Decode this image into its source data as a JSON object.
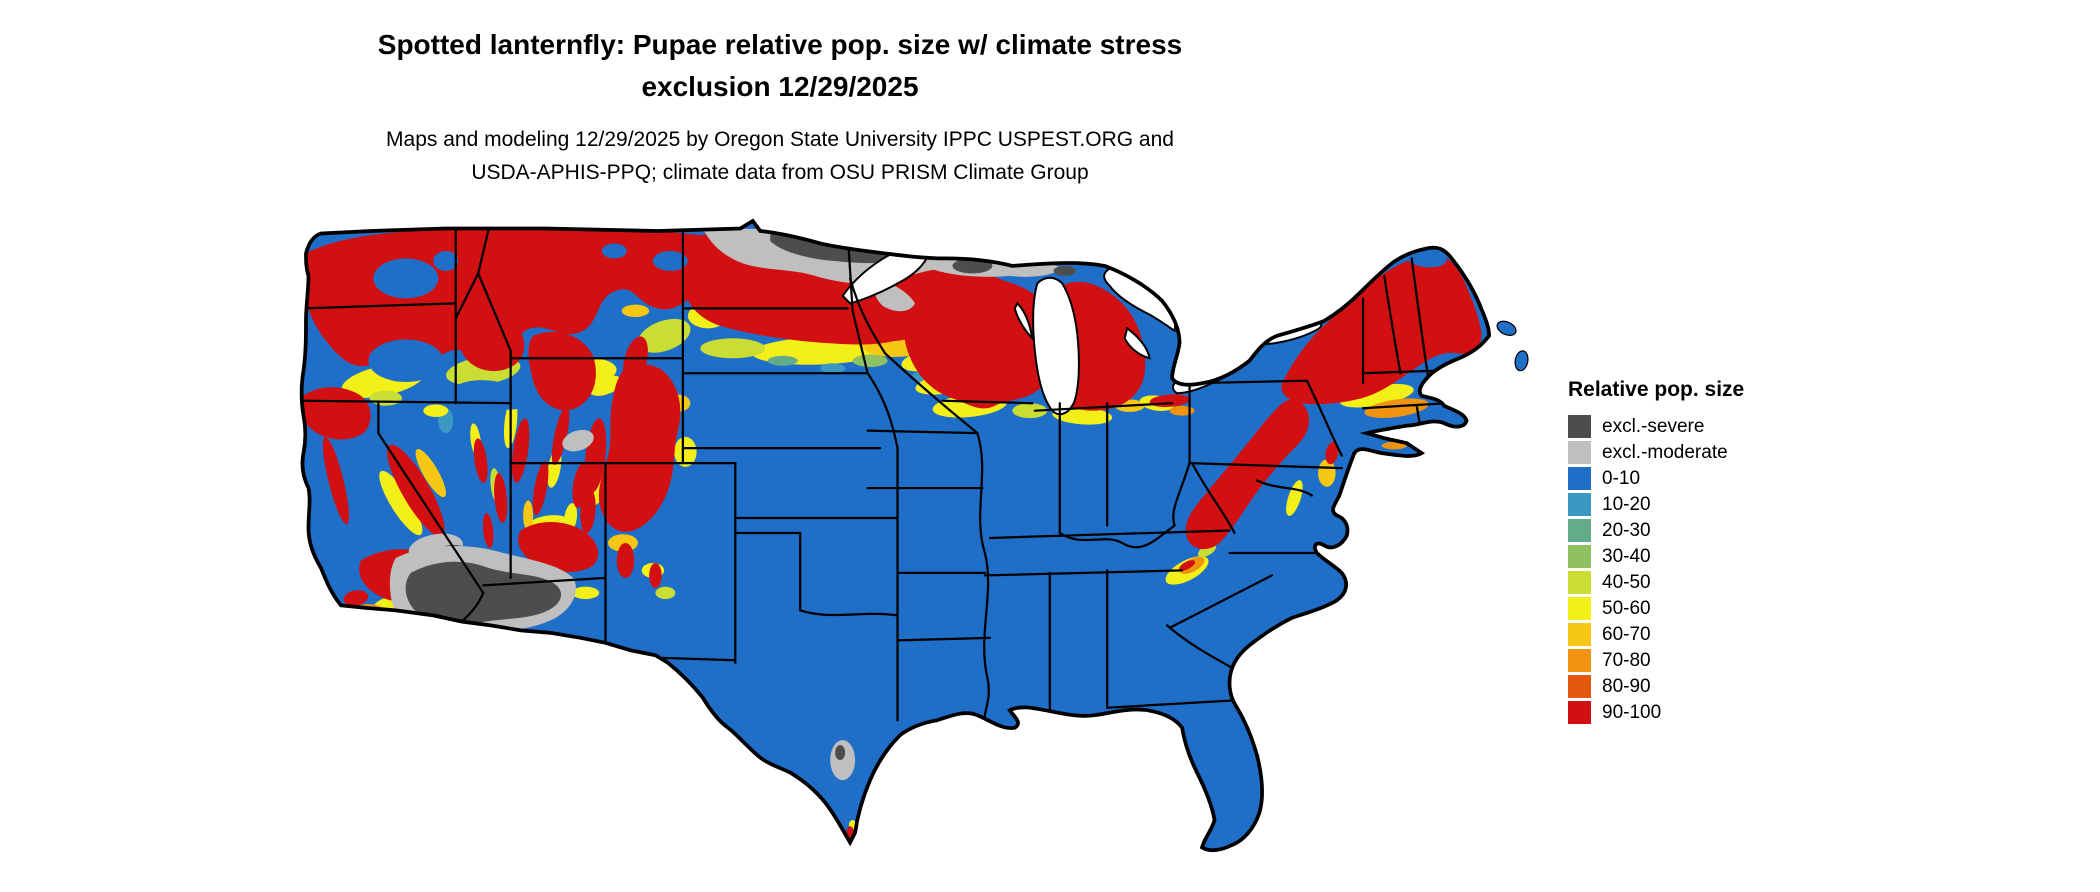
{
  "header": {
    "title_line1": "Spotted lanternfly: Pupae relative pop. size w/ climate stress",
    "title_line2": "exclusion 12/29/2025",
    "subtitle_line1": "Maps and modeling 12/29/2025 by Oregon State University IPPC USPEST.ORG and",
    "subtitle_line2": "USDA-APHIS-PPQ; climate data from OSU PRISM Climate Group"
  },
  "legend": {
    "title": "Relative pop. size",
    "items": [
      {
        "key": "excl_severe",
        "label": "excl.-severe",
        "color": "#4d4d4d"
      },
      {
        "key": "excl_moderate",
        "label": "excl.-moderate",
        "color": "#bfbfbf"
      },
      {
        "key": "v0_10",
        "label": "0-10",
        "color": "#1f6fc9"
      },
      {
        "key": "v10_20",
        "label": "10-20",
        "color": "#3b98c3"
      },
      {
        "key": "v20_30",
        "label": "20-30",
        "color": "#62ac89"
      },
      {
        "key": "v30_40",
        "label": "30-40",
        "color": "#90c161"
      },
      {
        "key": "v40_50",
        "label": "40-50",
        "color": "#c9dd32"
      },
      {
        "key": "v50_60",
        "label": "50-60",
        "color": "#f3ef18"
      },
      {
        "key": "v60_70",
        "label": "60-70",
        "color": "#f6c713"
      },
      {
        "key": "v70_80",
        "label": "70-80",
        "color": "#f0940f"
      },
      {
        "key": "v80_90",
        "label": "80-90",
        "color": "#e4570f"
      },
      {
        "key": "v90_100",
        "label": "90-100",
        "color": "#d20f11"
      }
    ]
  }
}
